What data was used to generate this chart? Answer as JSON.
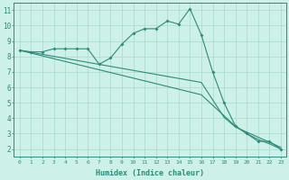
{
  "xlabel": "Humidex (Indice chaleur)",
  "bg_color": "#cdf0e8",
  "grid_color": "#a8d8cc",
  "line_color": "#2e8b7a",
  "x": [
    0,
    1,
    2,
    3,
    4,
    5,
    6,
    7,
    8,
    9,
    10,
    11,
    12,
    13,
    14,
    15,
    16,
    17,
    18,
    19,
    20,
    21,
    22,
    23
  ],
  "line1": [
    8.4,
    8.3,
    8.3,
    8.5,
    8.5,
    8.5,
    8.5,
    7.5,
    7.9,
    8.8,
    9.5,
    9.8,
    9.8,
    10.3,
    10.1,
    11.1,
    9.4,
    7.0,
    5.0,
    3.5,
    3.0,
    2.5,
    2.5,
    2.0
  ],
  "line2": [
    8.4,
    8.27,
    8.14,
    8.01,
    7.88,
    7.75,
    7.62,
    7.49,
    7.36,
    7.23,
    7.1,
    6.97,
    6.84,
    6.71,
    6.58,
    6.45,
    6.32,
    5.19,
    4.06,
    3.43,
    3.1,
    2.77,
    2.44,
    2.11
  ],
  "line3": [
    8.4,
    8.22,
    8.04,
    7.86,
    7.68,
    7.5,
    7.32,
    7.14,
    6.96,
    6.78,
    6.6,
    6.42,
    6.24,
    6.06,
    5.88,
    5.7,
    5.52,
    4.84,
    4.16,
    3.48,
    3.0,
    2.62,
    2.34,
    2.0
  ],
  "ylim": [
    1.5,
    11.5
  ],
  "xlim": [
    -0.5,
    23.5
  ],
  "yticks": [
    2,
    3,
    4,
    5,
    6,
    7,
    8,
    9,
    10,
    11
  ]
}
